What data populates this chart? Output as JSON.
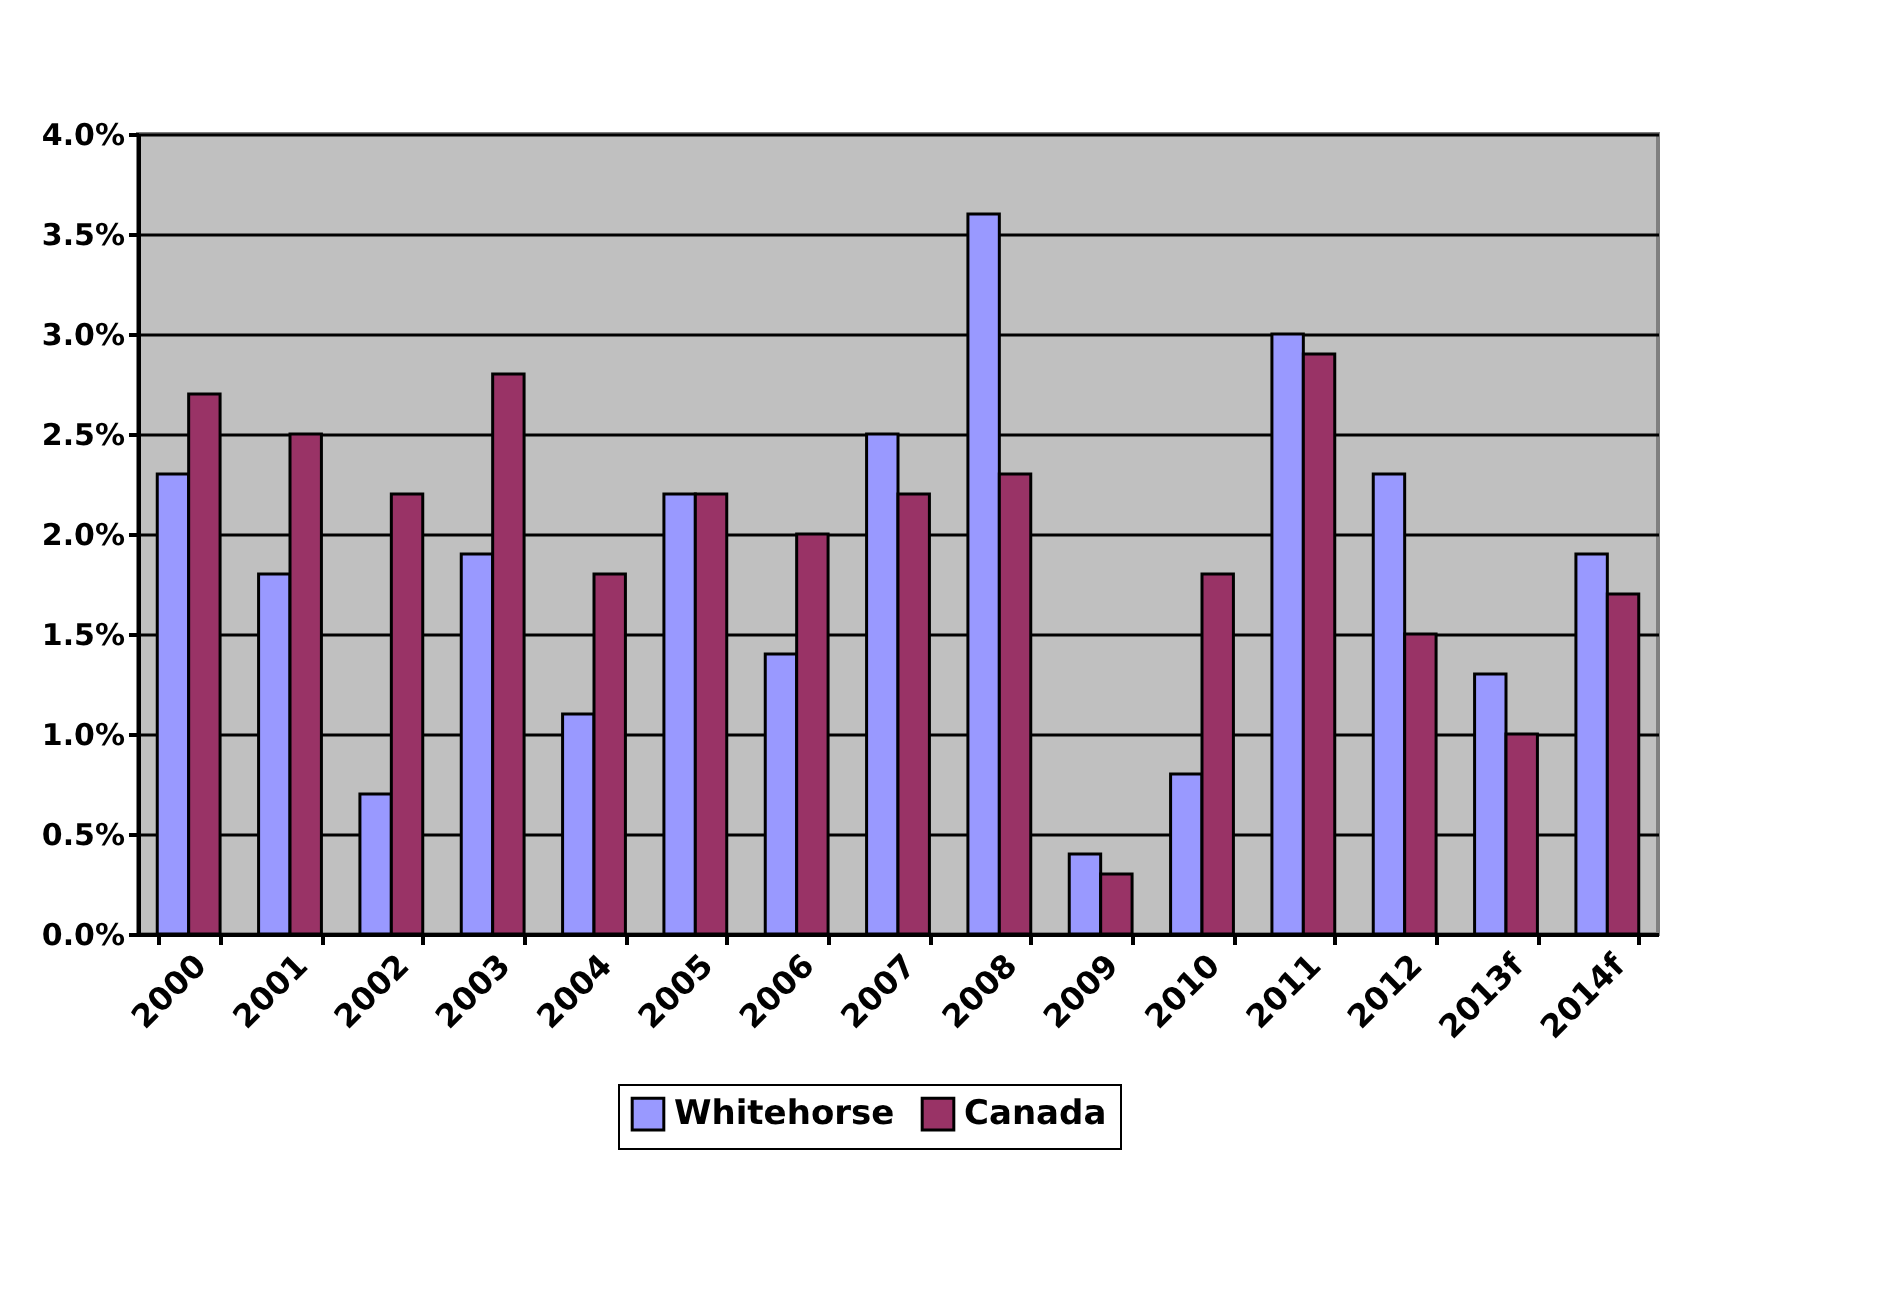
{
  "chart_data": {
    "type": "bar",
    "categories": [
      "2000",
      "2001",
      "2002",
      "2003",
      "2004",
      "2005",
      "2006",
      "2007",
      "2008",
      "2009",
      "2010",
      "2011",
      "2012",
      "2013f",
      "2014f"
    ],
    "series": [
      {
        "name": "Whitehorse",
        "color": "#9999ff",
        "values": [
          2.3,
          1.8,
          0.7,
          1.9,
          1.1,
          2.2,
          1.4,
          2.5,
          3.6,
          0.4,
          0.8,
          3.0,
          2.3,
          1.3,
          1.9
        ]
      },
      {
        "name": "Canada",
        "color": "#993366",
        "values": [
          2.7,
          2.5,
          2.2,
          2.8,
          1.8,
          2.2,
          2.0,
          2.2,
          2.3,
          0.3,
          1.8,
          2.9,
          1.5,
          1.0,
          1.7
        ]
      }
    ],
    "ylim": [
      0,
      4.0
    ],
    "yticks": [
      {
        "value": 0,
        "label": "0.0%"
      },
      {
        "value": 0.5,
        "label": "0.5%"
      },
      {
        "value": 1.0,
        "label": "1.0%"
      },
      {
        "value": 1.5,
        "label": "1.5%"
      },
      {
        "value": 2.0,
        "label": "2.0%"
      },
      {
        "value": 2.5,
        "label": "2.5%"
      },
      {
        "value": 3.0,
        "label": "3.0%"
      },
      {
        "value": 3.5,
        "label": "3.5%"
      },
      {
        "value": 4.0,
        "label": "4.0%"
      }
    ],
    "grid": "y",
    "legend": "bottom"
  }
}
